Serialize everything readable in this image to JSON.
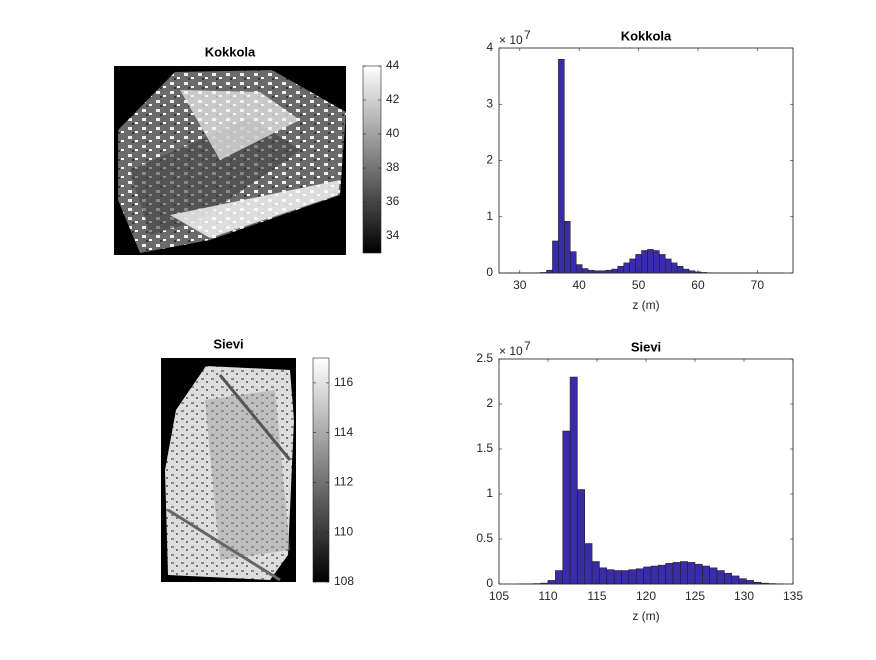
{
  "chart_data": [
    {
      "type": "image",
      "title": "Kokkola",
      "clim": [
        33,
        44
      ],
      "cticks": [
        34,
        36,
        38,
        40,
        42,
        44
      ]
    },
    {
      "type": "histogram",
      "title": "Kokkola",
      "xlabel": "z (m)",
      "color": "#3a2ca6",
      "y_multiplier": "× 10",
      "y_multiplier_exponent": "7",
      "bins": [
        27.5,
        28.5,
        29.5,
        30.5,
        31.5,
        32.5,
        33.5,
        34.5,
        35.5,
        36.5,
        37.5,
        38.5,
        39.5,
        40.5,
        41.5,
        42.5,
        43.5,
        44.5,
        45.5,
        46.5,
        47.5,
        48.5,
        49.5,
        50.5,
        51.5,
        52.5,
        53.5,
        54.5,
        55.5,
        56.5,
        57.5,
        58.5,
        59.5,
        60.5,
        61.5,
        62.5,
        63.5,
        64.5,
        65.5,
        66.5,
        67.5,
        68.5,
        69.5,
        70.5,
        71.5,
        72.5,
        73.5,
        74.5
      ],
      "values": [
        0.002,
        0.002,
        0.002,
        0.002,
        0.003,
        0.005,
        0.01,
        0.05,
        0.57,
        3.8,
        0.92,
        0.38,
        0.15,
        0.08,
        0.05,
        0.04,
        0.04,
        0.05,
        0.07,
        0.12,
        0.18,
        0.25,
        0.33,
        0.4,
        0.42,
        0.4,
        0.33,
        0.25,
        0.18,
        0.12,
        0.07,
        0.04,
        0.02,
        0.01,
        0.005,
        0.003,
        0.002,
        0.002,
        0.001,
        0.001,
        0.001,
        0.001,
        0.001,
        0.001,
        0.001,
        0.001,
        0.001
      ],
      "xlim": [
        26.5,
        76
      ],
      "ylim": [
        0,
        4
      ],
      "xticks": [
        30,
        40,
        50,
        60,
        70
      ],
      "yticks": [
        0,
        1,
        2,
        3,
        4
      ]
    },
    {
      "type": "image",
      "title": "Sievi",
      "clim": [
        108,
        117
      ],
      "cticks": [
        108,
        110,
        112,
        114,
        116
      ]
    },
    {
      "type": "histogram",
      "title": "Sievi",
      "xlabel": "z (m)",
      "color": "#3a2ca6",
      "y_multiplier": "× 10",
      "y_multiplier_exponent": "7",
      "bins": [
        107,
        107.75,
        108.5,
        109.25,
        110,
        110.75,
        111.5,
        112.25,
        113,
        113.75,
        114.5,
        115.25,
        116,
        116.75,
        117.5,
        118.25,
        119,
        119.75,
        120.5,
        121.25,
        122,
        122.75,
        123.5,
        124.25,
        125,
        125.75,
        126.5,
        127.25,
        128,
        128.75,
        129.5,
        130.25,
        131,
        131.75,
        132.5,
        133.25,
        134
      ],
      "values": [
        0.002,
        0.003,
        0.005,
        0.01,
        0.04,
        0.15,
        1.7,
        2.3,
        1.05,
        0.45,
        0.25,
        0.18,
        0.16,
        0.15,
        0.15,
        0.16,
        0.17,
        0.19,
        0.2,
        0.21,
        0.23,
        0.24,
        0.25,
        0.24,
        0.22,
        0.2,
        0.18,
        0.15,
        0.12,
        0.09,
        0.06,
        0.04,
        0.02,
        0.01,
        0.005,
        0.002
      ],
      "xlim": [
        105,
        135
      ],
      "ylim": [
        0,
        2.5
      ],
      "xticks": [
        105,
        110,
        115,
        120,
        125,
        130,
        135
      ],
      "yticks": [
        0,
        0.5,
        1,
        1.5,
        2,
        2.5
      ]
    }
  ]
}
